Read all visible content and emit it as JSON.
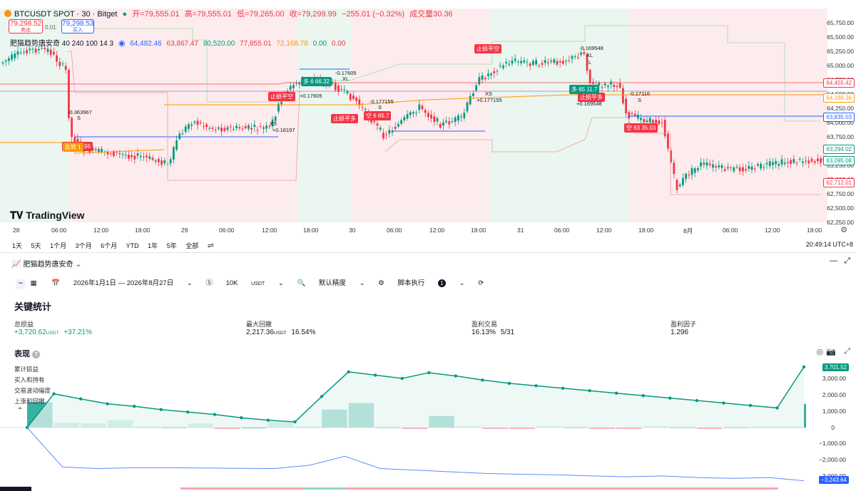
{
  "header": {
    "symbol": "BTCUSDT SPOT · 30 · Bitget",
    "open_label": "开=79,555.01",
    "high_label": "高=79,555.01",
    "low_label": "低=79,265.00",
    "close_label": "收=79,299.99",
    "change_label": "−255.01 (−0.32%)",
    "volume_label": "成交量30.36",
    "sell_price": "79,298.52",
    "sell_label": "卖出",
    "spread": "0.01",
    "buy_price": "79,298.53",
    "buy_label": "买入",
    "indicator_name": "肥猫趋势唐安奇 40 240 100 14 3",
    "indicator_values": [
      "64,482.46",
      "63,867.47",
      "80,520.00",
      "77,855.01",
      "72,168.78",
      "0.00",
      "0.00"
    ],
    "tv_logo": "TradingView"
  },
  "price_axis": [
    "65,750.00",
    "65,500.00",
    "65,250.00",
    "65,000.00",
    "64,750.00",
    "64,500.00",
    "64,250.00",
    "64,000.00",
    "63,750.00",
    "63,500.00",
    "63,250.00",
    "63,000.00",
    "62,750.00",
    "62,500.00",
    "62,250.00"
  ],
  "price_tags": {
    "red1": "64,455.42",
    "orange": "64,188.36",
    "blue": "63,835.03",
    "green": "63,294.02",
    "teal": "63,095.08",
    "red2": "62,712.01"
  },
  "time_axis": [
    "28",
    "06:00",
    "12:00",
    "18:00",
    "29",
    "06:00",
    "12:00",
    "18:00",
    "30",
    "06:00",
    "12:00",
    "18:00",
    "31",
    "06:00",
    "12:00",
    "18:00",
    "8月",
    "06:00",
    "12:00",
    "18:00"
  ],
  "chart_annotations": {
    "stop_short_1": "止损平空",
    "stop_short_2": "止损平空",
    "stop_long_1": "止损平多",
    "stop_long_2": "止损平多",
    "short_entry_1": "空 6 84.96",
    "short_entry_2": "空 6 85.7",
    "short_entry_3": "空 63 35.03",
    "long_entry_1": "多 6 66.32",
    "long_entry_2": "多 65 11.7",
    "reverse": "反转 1",
    "val1": "-0.363967",
    "val2": "+0.18197",
    "val3": "-0.17605",
    "val4": "+0.17605",
    "val5": "-0.177155",
    "val6": "+0.177155",
    "val7": "-0.169548",
    "val8": "+0.169548",
    "val9": "-0.17116",
    "xs": "XS",
    "xl": "XL",
    "s": "S",
    "l": "L"
  },
  "toolbar": {
    "ranges": [
      "1天",
      "5天",
      "1个月",
      "3个月",
      "6个月",
      "YTD",
      "1年",
      "5年",
      "全部"
    ],
    "clock": "20:49:14 UTC+8"
  },
  "strategy": {
    "name": "肥猫趋势唐安奇",
    "date_range": "2026年1月1日 — 2026年8月27日",
    "capital": "10K",
    "capital_unit": "USDT",
    "precision": "默认精度",
    "script_exec": "脚本执行",
    "script_count": "1"
  },
  "key_stats": {
    "title": "关键统计",
    "items": [
      {
        "label": "总损益",
        "value": "+3,720.62",
        "unit": "USDT",
        "pct": "+37.21%"
      },
      {
        "label": "最大回撤",
        "value": "2,217.36",
        "unit": "USDT",
        "pct": "16.54%"
      },
      {
        "label": "盈利交易",
        "value": "16.13%",
        "unit": "",
        "pct": "5/31"
      },
      {
        "label": "盈利因子",
        "value": "1.296",
        "unit": "",
        "pct": ""
      }
    ]
  },
  "performance": {
    "title": "表现",
    "legend": [
      "累计损益",
      "买入和持有",
      "交易波动幅度",
      "上涨和回撤"
    ],
    "axis": [
      "3,000.00",
      "2,000.00",
      "1,000.00",
      "0",
      "−1,000.00",
      "−2,000.00",
      "−3,000.00"
    ],
    "badge_green": "3,701.52",
    "badge_blue": "−3,243.64"
  },
  "colors": {
    "up": "#089981",
    "down": "#f23645",
    "accent": "#2962ff",
    "orange": "#ff9800"
  },
  "perf_chart_data": {
    "type": "line",
    "cumulative_pnl": [
      0,
      2060,
      1750,
      1450,
      1300,
      1100,
      950,
      800,
      600,
      450,
      350,
      1900,
      3400,
      3200,
      3000,
      3350,
      3150,
      2900,
      2700,
      2550,
      2400,
      2250,
      2100,
      1950,
      1800,
      1650,
      1500,
      1350,
      1200,
      3701.52
    ],
    "buy_hold": [
      0,
      -2400,
      -2500,
      -2450,
      -2450,
      -2470,
      -2490,
      -2500,
      -2300,
      -1750,
      -2500,
      -2600,
      -2700,
      -2800,
      -2850,
      -2880,
      -2950,
      -3000,
      -2950,
      -3050,
      -3100,
      -3050,
      -3243.64
    ]
  }
}
